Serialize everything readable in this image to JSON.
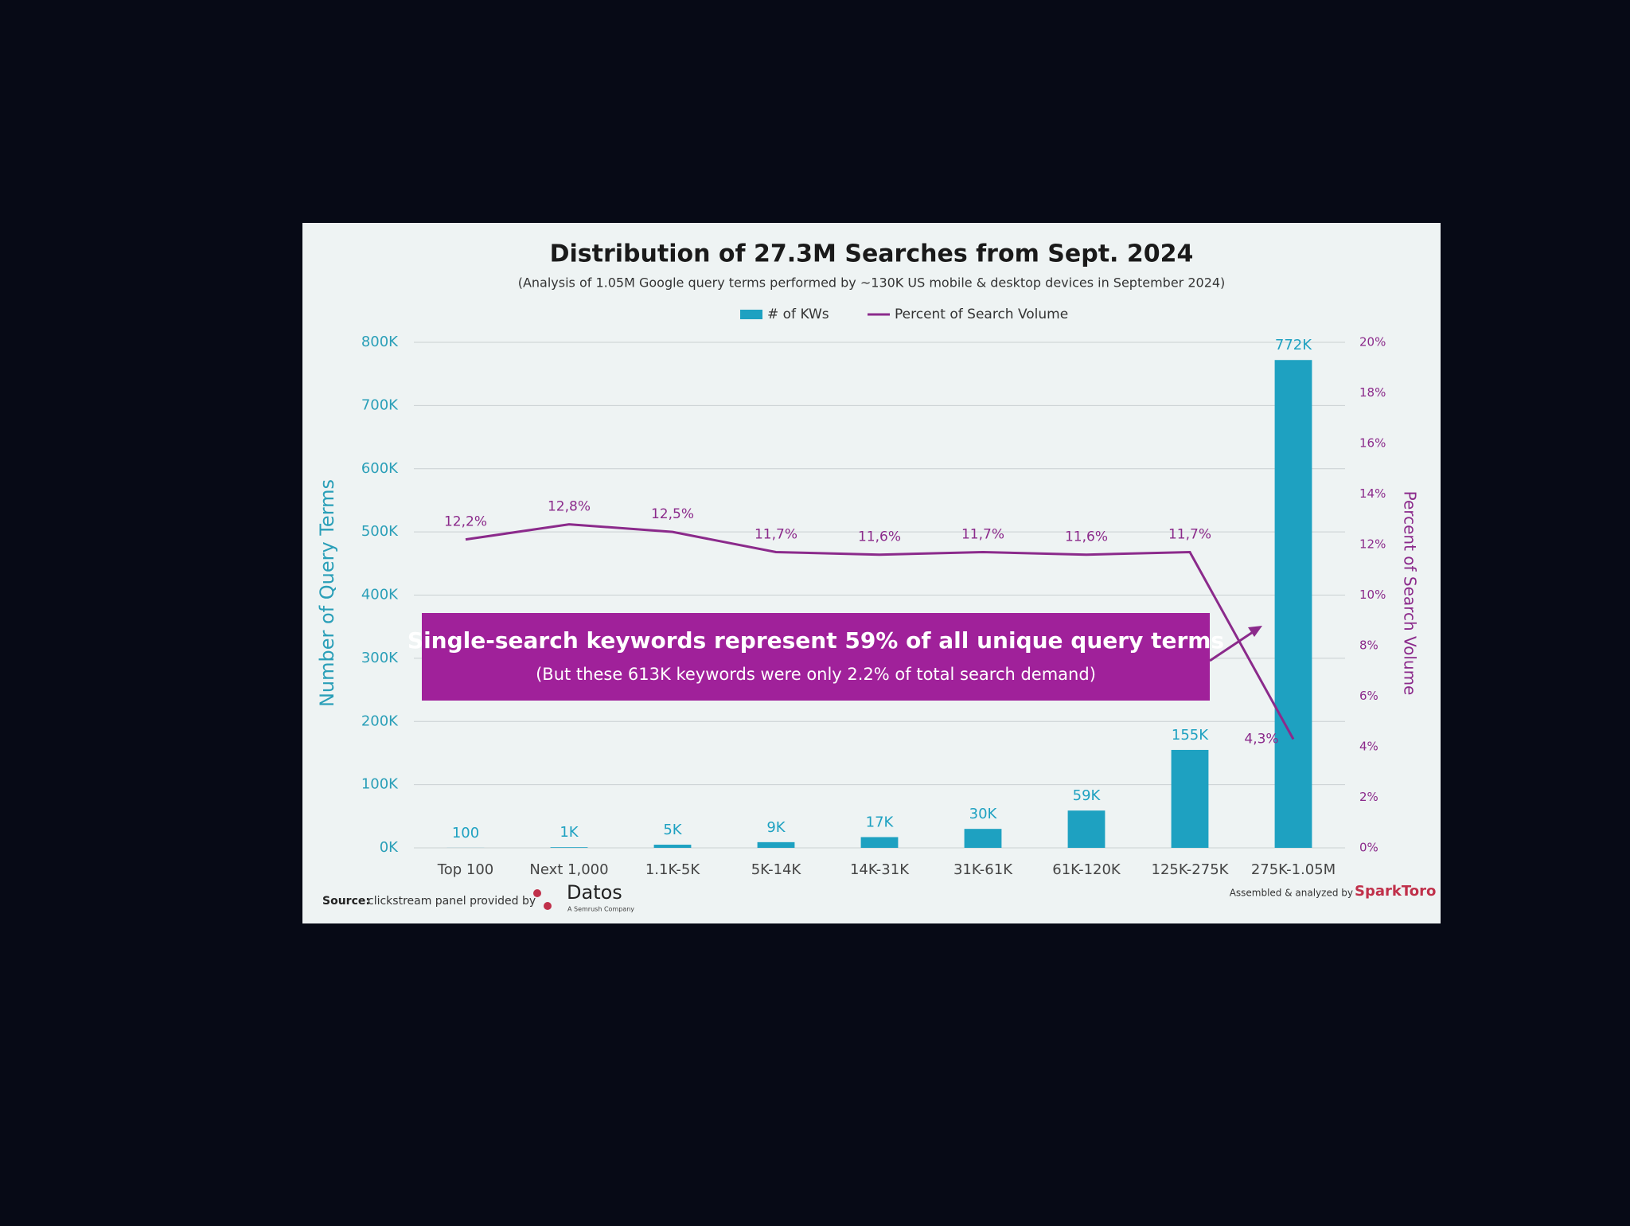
{
  "chart_data": {
    "type": "bar",
    "title": "Distribution of 27.3M Searches from Sept. 2024",
    "subtitle": "(Analysis of 1.05M Google query terms performed by ~130K US mobile & desktop devices in September 2024)",
    "y_label": "Number of Query Terms",
    "y2_label": "Percent of Search Volume",
    "categories": [
      "Top 100",
      "Next 1,000",
      "1.1K-5K",
      "5K-14K",
      "14K-31K",
      "31K-61K",
      "61K-120K",
      "125K-275K",
      "275K-1.05M"
    ],
    "series": [
      {
        "name": "# of KWs",
        "type": "bar",
        "color": "#1ea1c1",
        "values": [
          100,
          1000,
          5000,
          9000,
          17000,
          30000,
          59000,
          155000,
          772000
        ],
        "value_labels": [
          "100",
          "1K",
          "5K",
          "9K",
          "17K",
          "30K",
          "59K",
          "155K",
          "772K"
        ]
      },
      {
        "name": "Percent of Search Volume",
        "type": "line",
        "axis": "y2",
        "color": "#8b2a8b",
        "values": [
          12.2,
          12.8,
          12.5,
          11.7,
          11.6,
          11.7,
          11.6,
          11.7,
          4.3
        ],
        "value_labels": [
          "12,2%",
          "12,8%",
          "12,5%",
          "11,7%",
          "11,6%",
          "11,7%",
          "11,6%",
          "11,7%",
          "4,3%"
        ]
      }
    ],
    "ylim": [
      0,
      800000
    ],
    "yticks": [
      {
        "value": 0,
        "label": "0K"
      },
      {
        "value": 100000,
        "label": "100K"
      },
      {
        "value": 200000,
        "label": "200K"
      },
      {
        "value": 300000,
        "label": "300K"
      },
      {
        "value": 400000,
        "label": "400K"
      },
      {
        "value": 500000,
        "label": "500K"
      },
      {
        "value": 600000,
        "label": "600K"
      },
      {
        "value": 700000,
        "label": "700K"
      },
      {
        "value": 800000,
        "label": "800K"
      }
    ],
    "y2lim": [
      0,
      20
    ],
    "y2ticks": [
      {
        "value": 0,
        "label": "0%"
      },
      {
        "value": 2,
        "label": "2%"
      },
      {
        "value": 4,
        "label": "4%"
      },
      {
        "value": 6,
        "label": "6%"
      },
      {
        "value": 8,
        "label": "8%"
      },
      {
        "value": 10,
        "label": "10%"
      },
      {
        "value": 12,
        "label": "12%"
      },
      {
        "value": 14,
        "label": "14%"
      },
      {
        "value": 16,
        "label": "16%"
      },
      {
        "value": 18,
        "label": "18%"
      },
      {
        "value": 20,
        "label": "20%"
      }
    ],
    "grid": true,
    "legend": "top",
    "annotation": {
      "headline": "Single-search keywords represent 59% of all unique query terms",
      "detail": "(But these 613K keywords were only 2.2% of total search demand)",
      "color": "#a0219a"
    },
    "footer": {
      "source_label": "Source:",
      "source_text": "clickstream panel provided by",
      "source_brand": "Datos",
      "source_brand_sub": "A Semrush Company",
      "credit_text": "Assembled & analyzed by",
      "credit_brand": "SparkToro"
    }
  }
}
